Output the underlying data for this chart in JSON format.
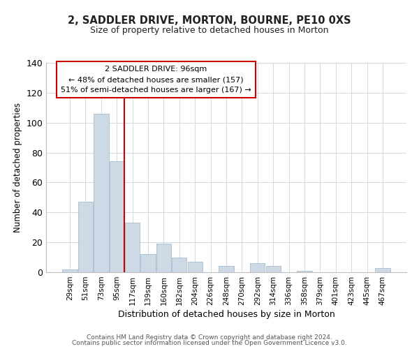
{
  "title": "2, SADDLER DRIVE, MORTON, BOURNE, PE10 0XS",
  "subtitle": "Size of property relative to detached houses in Morton",
  "xlabel": "Distribution of detached houses by size in Morton",
  "ylabel": "Number of detached properties",
  "bar_labels": [
    "29sqm",
    "51sqm",
    "73sqm",
    "95sqm",
    "117sqm",
    "139sqm",
    "160sqm",
    "182sqm",
    "204sqm",
    "226sqm",
    "248sqm",
    "270sqm",
    "292sqm",
    "314sqm",
    "336sqm",
    "358sqm",
    "379sqm",
    "401sqm",
    "423sqm",
    "445sqm",
    "467sqm"
  ],
  "bar_values": [
    2,
    47,
    106,
    74,
    33,
    12,
    19,
    10,
    7,
    0,
    4,
    0,
    6,
    4,
    0,
    1,
    0,
    0,
    0,
    0,
    3
  ],
  "bar_color": "#cdd9e5",
  "bar_edge_color": "#a8bfcf",
  "marker_index": 3,
  "marker_line_color": "#cc0000",
  "ylim": [
    0,
    140
  ],
  "yticks": [
    0,
    20,
    40,
    60,
    80,
    100,
    120,
    140
  ],
  "annotation_title": "2 SADDLER DRIVE: 96sqm",
  "annotation_line1": "← 48% of detached houses are smaller (157)",
  "annotation_line2": "51% of semi-detached houses are larger (167) →",
  "annotation_box_color": "#ffffff",
  "annotation_box_edge": "#cc0000",
  "footer1": "Contains HM Land Registry data © Crown copyright and database right 2024.",
  "footer2": "Contains public sector information licensed under the Open Government Licence v3.0."
}
